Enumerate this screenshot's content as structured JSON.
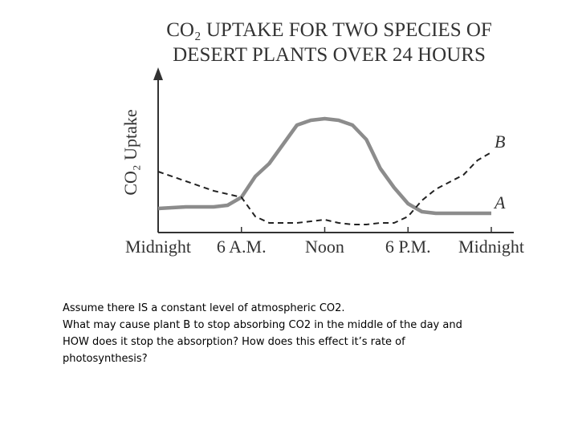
{
  "chart_data": {
    "type": "line",
    "title": "CO₂ UPTAKE FOR TWO SPECIES OF DESERT PLANTS OVER 24 HOURS",
    "y_label": "CO₂ Uptake",
    "x": [
      0,
      2,
      4,
      5,
      6,
      7,
      8,
      9,
      10,
      11,
      12,
      13,
      14,
      15,
      16,
      17,
      18,
      19,
      20,
      22,
      23,
      24
    ],
    "xlim": [
      0,
      24
    ],
    "xticks": [
      {
        "value": 0,
        "label": "Midnight"
      },
      {
        "value": 6,
        "label": "6 A.M."
      },
      {
        "value": 12,
        "label": "Noon"
      },
      {
        "value": 18,
        "label": "6 P.M."
      },
      {
        "value": 24,
        "label": "Midnight"
      }
    ],
    "ylim": [
      0,
      10
    ],
    "series": [
      {
        "name": "A",
        "color": "#8c8c8c",
        "dash": false,
        "values": [
          1.5,
          1.6,
          1.6,
          1.7,
          2.2,
          3.5,
          4.3,
          5.5,
          6.7,
          7.0,
          7.1,
          7.0,
          6.7,
          5.8,
          4.0,
          2.8,
          1.8,
          1.3,
          1.2,
          1.2,
          1.2,
          1.2
        ]
      },
      {
        "name": "B",
        "color": "#222222",
        "dash": true,
        "values": [
          3.8,
          3.2,
          2.6,
          2.4,
          2.2,
          1.0,
          0.6,
          0.6,
          0.6,
          0.7,
          0.8,
          0.6,
          0.5,
          0.5,
          0.6,
          0.6,
          1.0,
          2.0,
          2.7,
          3.6,
          4.5,
          5.0
        ]
      }
    ]
  },
  "notes": [
    "Assume there IS a constant level of atmospheric CO2.",
    "What may cause plant B to stop absorbing CO2 in the middle of the day and HOW does it stop the absorption? How does this effect it’s rate of photosynthesis?"
  ]
}
